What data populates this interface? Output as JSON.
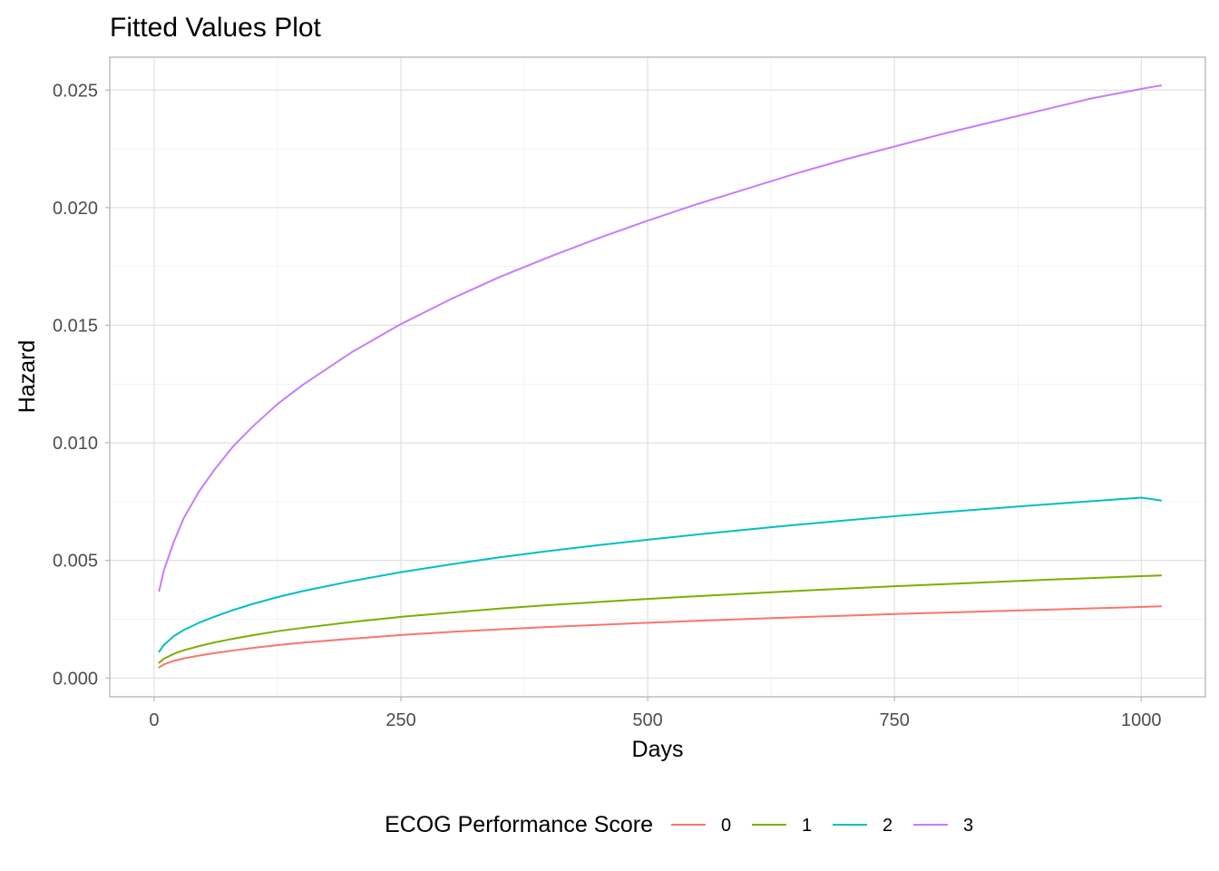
{
  "chart_data": {
    "type": "line",
    "title": "Fitted Values Plot",
    "xlabel": "Days",
    "ylabel": "Hazard",
    "xlim": [
      -45,
      1065
    ],
    "ylim": [
      -0.0008,
      0.0264
    ],
    "x_ticks": [
      0,
      250,
      500,
      750,
      1000
    ],
    "x_tick_labels": [
      "0",
      "250",
      "500",
      "750",
      "1000"
    ],
    "y_ticks": [
      0.0,
      0.005,
      0.01,
      0.015,
      0.02,
      0.025
    ],
    "y_tick_labels": [
      "0.000",
      "0.005",
      "0.010",
      "0.015",
      "0.020",
      "0.025"
    ],
    "grid": true,
    "legend": {
      "title": "ECOG Performance Score",
      "position": "bottom"
    },
    "series": [
      {
        "name": "0",
        "color": "#F8766D",
        "x": [
          5,
          10,
          20,
          30,
          45,
          60,
          80,
          100,
          125,
          150,
          200,
          250,
          300,
          350,
          400,
          450,
          500,
          550,
          600,
          650,
          700,
          750,
          800,
          850,
          900,
          950,
          1000,
          1020
        ],
        "y": [
          0.00045,
          0.00058,
          0.00073,
          0.00083,
          0.00095,
          0.00105,
          0.00117,
          0.00128,
          0.0014,
          0.0015,
          0.00167,
          0.00183,
          0.00196,
          0.00207,
          0.00217,
          0.00226,
          0.00235,
          0.00243,
          0.00251,
          0.00258,
          0.00265,
          0.00272,
          0.00278,
          0.00284,
          0.0029,
          0.00296,
          0.00302,
          0.00305
        ]
      },
      {
        "name": "1",
        "color": "#7CAE00",
        "x": [
          5,
          10,
          20,
          30,
          45,
          60,
          80,
          100,
          125,
          150,
          200,
          250,
          300,
          350,
          400,
          450,
          500,
          550,
          600,
          650,
          700,
          750,
          800,
          850,
          900,
          950,
          1000,
          1020
        ],
        "y": [
          0.00065,
          0.00082,
          0.00103,
          0.00118,
          0.00135,
          0.0015,
          0.00167,
          0.00182,
          0.00199,
          0.00213,
          0.00238,
          0.0026,
          0.00278,
          0.00295,
          0.0031,
          0.00323,
          0.00336,
          0.00348,
          0.00359,
          0.0037,
          0.0038,
          0.0039,
          0.00399,
          0.00408,
          0.00417,
          0.00425,
          0.00433,
          0.00436
        ]
      },
      {
        "name": "2",
        "color": "#00BFC4",
        "x": [
          5,
          10,
          20,
          30,
          45,
          60,
          80,
          100,
          125,
          150,
          200,
          250,
          300,
          350,
          400,
          450,
          500,
          550,
          600,
          650,
          700,
          750,
          800,
          850,
          900,
          950,
          1000,
          1020
        ],
        "y": [
          0.00112,
          0.00141,
          0.00178,
          0.00204,
          0.00234,
          0.00259,
          0.00289,
          0.00315,
          0.00344,
          0.00369,
          0.00412,
          0.0045,
          0.00483,
          0.00513,
          0.0054,
          0.00565,
          0.00588,
          0.0061,
          0.00631,
          0.00651,
          0.0067,
          0.00688,
          0.00705,
          0.00721,
          0.00737,
          0.00752,
          0.00767,
          0.00755
        ]
      },
      {
        "name": "3",
        "color": "#C77CFF",
        "x": [
          5,
          10,
          20,
          30,
          45,
          60,
          80,
          100,
          125,
          150,
          200,
          250,
          300,
          350,
          400,
          450,
          500,
          550,
          600,
          650,
          700,
          750,
          800,
          850,
          900,
          950,
          1000,
          1020
        ],
        "y": [
          0.0037,
          0.0046,
          0.0058,
          0.0068,
          0.0079,
          0.0088,
          0.00985,
          0.0107,
          0.01165,
          0.01245,
          0.01385,
          0.01505,
          0.0161,
          0.01705,
          0.0179,
          0.0187,
          0.01945,
          0.02015,
          0.0208,
          0.02145,
          0.02205,
          0.0226,
          0.02315,
          0.02365,
          0.02415,
          0.02465,
          0.02505,
          0.0252
        ]
      }
    ]
  }
}
